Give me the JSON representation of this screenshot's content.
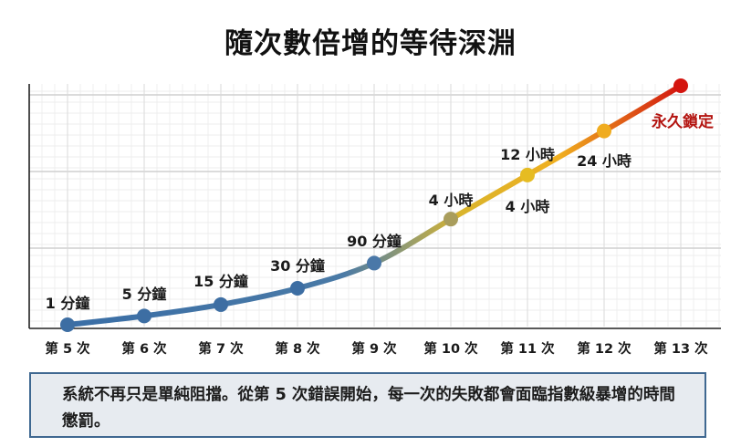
{
  "title": "隨次數倍增的等待深淵",
  "note": "系統不再只是單純阻擋。從第 5 次錯誤開始，每一次的失敗都會面臨指數級暴增的時間懲罰。",
  "chart_data": {
    "type": "line",
    "categories": [
      "第 5 次",
      "第 6 次",
      "第 7 次",
      "第 8 次",
      "第 9 次",
      "第 10 次",
      "第 11 次",
      "第 12 次",
      "第 13 次"
    ],
    "values": [
      0,
      0.7,
      1.6,
      2.9,
      4.9,
      8.4,
      11.9,
      15.4,
      19
    ],
    "labels": [
      "1 分鐘",
      "5 分鐘",
      "15 分鐘",
      "30 分鐘",
      "90 分鐘",
      "4 小時",
      "4 小時",
      "24 小時",
      "永久鎖定"
    ],
    "extra_labels": [
      "12 小時"
    ],
    "ylim": [
      0,
      19
    ],
    "grid": true,
    "colors": {
      "start": "#3b6fa5",
      "mid": "#e8c21e",
      "end": "#c8140f",
      "final_label": "#b3130f"
    }
  }
}
